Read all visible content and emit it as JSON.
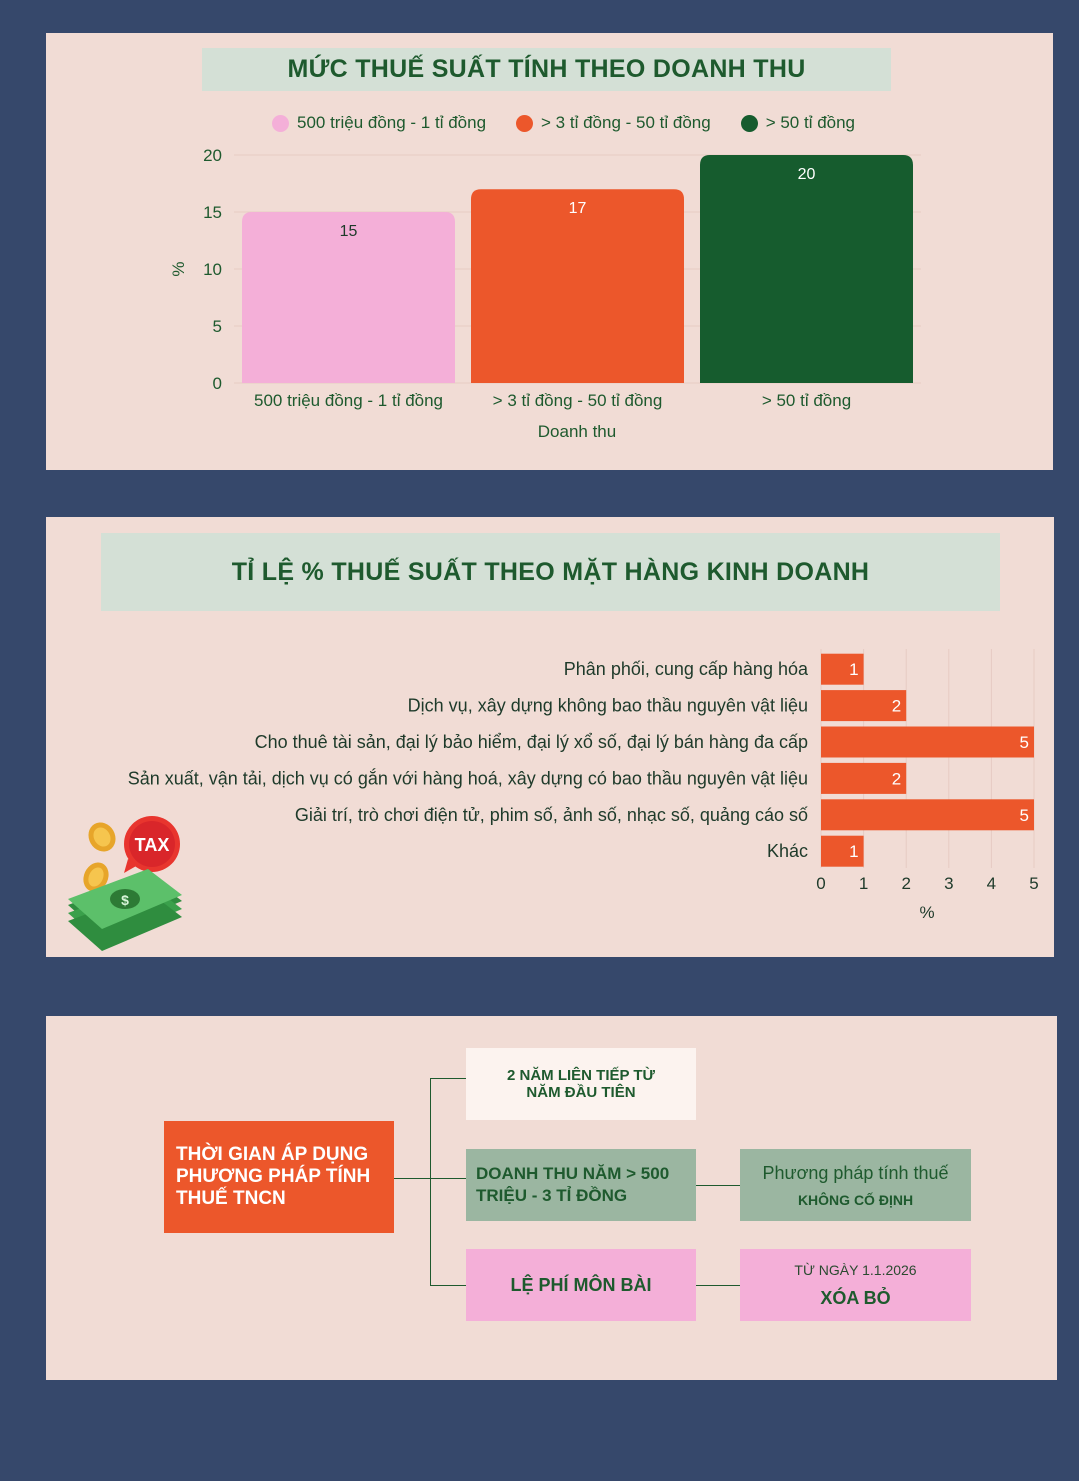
{
  "colors": {
    "page_bg": "#36486b",
    "panel_bg": "#f1dcd5",
    "title_bg": "#d4e0d6",
    "dark_green": "#1e5a2e",
    "pink": "#f4afd8",
    "orange": "#ec572b",
    "forest": "#165c2e",
    "sage": "#9bb6a1"
  },
  "chart1": {
    "title": "MỨC THUẾ SUẤT TÍNH THEO DOANH THU"
  },
  "chart2": {
    "title": "TỈ LỆ % THUẾ SUẤT THEO MẶT HÀNG KINH DOANH"
  },
  "chart_data": [
    {
      "type": "bar",
      "title": "MỨC THUẾ SUẤT TÍNH THEO DOANH THU",
      "categories": [
        "500 triệu đồng - 1 tỉ đồng",
        "> 3 tỉ đồng - 50 tỉ đồng",
        "> 50 tỉ đồng"
      ],
      "values": [
        15,
        17,
        20
      ],
      "colors": [
        "#f4afd8",
        "#ec572b",
        "#165c2e"
      ],
      "legend": [
        "500 triệu đồng - 1 tỉ đồng",
        "> 3 tỉ đồng - 50 tỉ đồng",
        "> 50 tỉ đồng"
      ],
      "legend_position": "top",
      "xlabel": "Doanh thu",
      "ylabel": "%",
      "ylim": [
        0,
        20
      ],
      "yticks": [
        0,
        5,
        10,
        15,
        20
      ],
      "grid": true
    },
    {
      "type": "bar",
      "orientation": "horizontal",
      "title": "TỈ LỆ % THUẾ SUẤT THEO MẶT HÀNG KINH DOANH",
      "categories": [
        "Phân phối, cung cấp hàng hóa",
        "Dịch vụ, xây dựng không bao thầu nguyên vật liệu",
        "Cho thuê tài sản, đại lý bảo hiểm, đại lý xổ số, đại lý bán hàng đa cấp",
        "Sản xuất, vận tải, dịch vụ có gắn với hàng hoá, xây dựng có bao thầu nguyên vật liệu",
        "Giải trí, trò chơi điện tử, phim số, ảnh số, nhạc số, quảng cáo số",
        "Khác"
      ],
      "values": [
        1,
        2,
        5,
        2,
        5,
        1
      ],
      "color": "#ec572b",
      "xlabel": "%",
      "ylabel": "",
      "xlim": [
        0,
        5
      ],
      "xticks": [
        0,
        1,
        2,
        3,
        4,
        5
      ],
      "grid": true
    }
  ],
  "tax_icon_label": "TAX",
  "diagram": {
    "main_label": "THỜI GIAN ÁP DỤNG PHƯƠNG PHÁP TÍNH THUẾ TNCN",
    "branch1": "2 NĂM LIÊN TIẾP TỪ NĂM ĐẦU TIÊN",
    "branch2": "DOANH THU NĂM > 500 TRIỆU - 3 TỈ ĐỒNG",
    "branch2_result_top": "Phương pháp tính thuế",
    "branch2_result_bottom": "KHÔNG CỐ ĐỊNH",
    "branch3": "LỆ PHÍ MÔN BÀI",
    "branch3_result_top": "TỪ NGÀY 1.1.2026",
    "branch3_result_bottom": "XÓA BỎ"
  }
}
